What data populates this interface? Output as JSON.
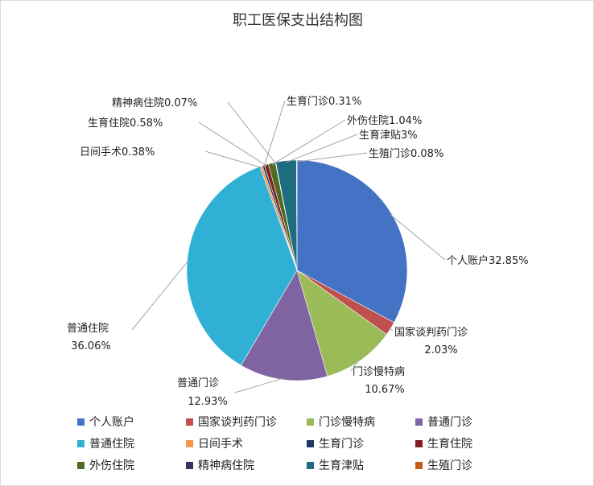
{
  "chart_data": {
    "type": "pie",
    "title": "职工医保支出结构图",
    "slices": [
      {
        "name": "个人账户",
        "value": 32.85,
        "label": "个人账户32.85%",
        "color": "#4472c4"
      },
      {
        "name": "国家谈判药门诊",
        "value": 2.03,
        "label": "国家谈判药门诊 2.03%",
        "color": "#c0504d"
      },
      {
        "name": "门诊慢特病",
        "value": 10.67,
        "label": "门诊慢特病 10.67%",
        "color": "#9bbb59"
      },
      {
        "name": "普通门诊",
        "value": 12.93,
        "label": "普通门诊 12.93%",
        "color": "#8064a2"
      },
      {
        "name": "普通住院",
        "value": 36.06,
        "label": "普通住院 36.06%",
        "color": "#31b0d5"
      },
      {
        "name": "日间手术",
        "value": 0.38,
        "label": "日间手术0.38%",
        "color": "#f79646"
      },
      {
        "name": "生育门诊",
        "value": 0.31,
        "label": "生育门诊0.31%",
        "color": "#1f3864"
      },
      {
        "name": "生育住院",
        "value": 0.58,
        "label": "生育住院0.58%",
        "color": "#7f1e1e"
      },
      {
        "name": "外伤住院",
        "value": 1.04,
        "label": "外伤住院1.04%",
        "color": "#4e6b23"
      },
      {
        "name": "精神病住院",
        "value": 0.07,
        "label": "精神病住院0.07%",
        "color": "#3f2f63"
      },
      {
        "name": "生育津贴",
        "value": 3.0,
        "label": "生育津贴3%",
        "color": "#1f6b7f"
      },
      {
        "name": "生殖门诊",
        "value": 0.08,
        "label": "生殖门诊0.08%",
        "color": "#c55a11"
      }
    ],
    "legend_position": "bottom"
  }
}
